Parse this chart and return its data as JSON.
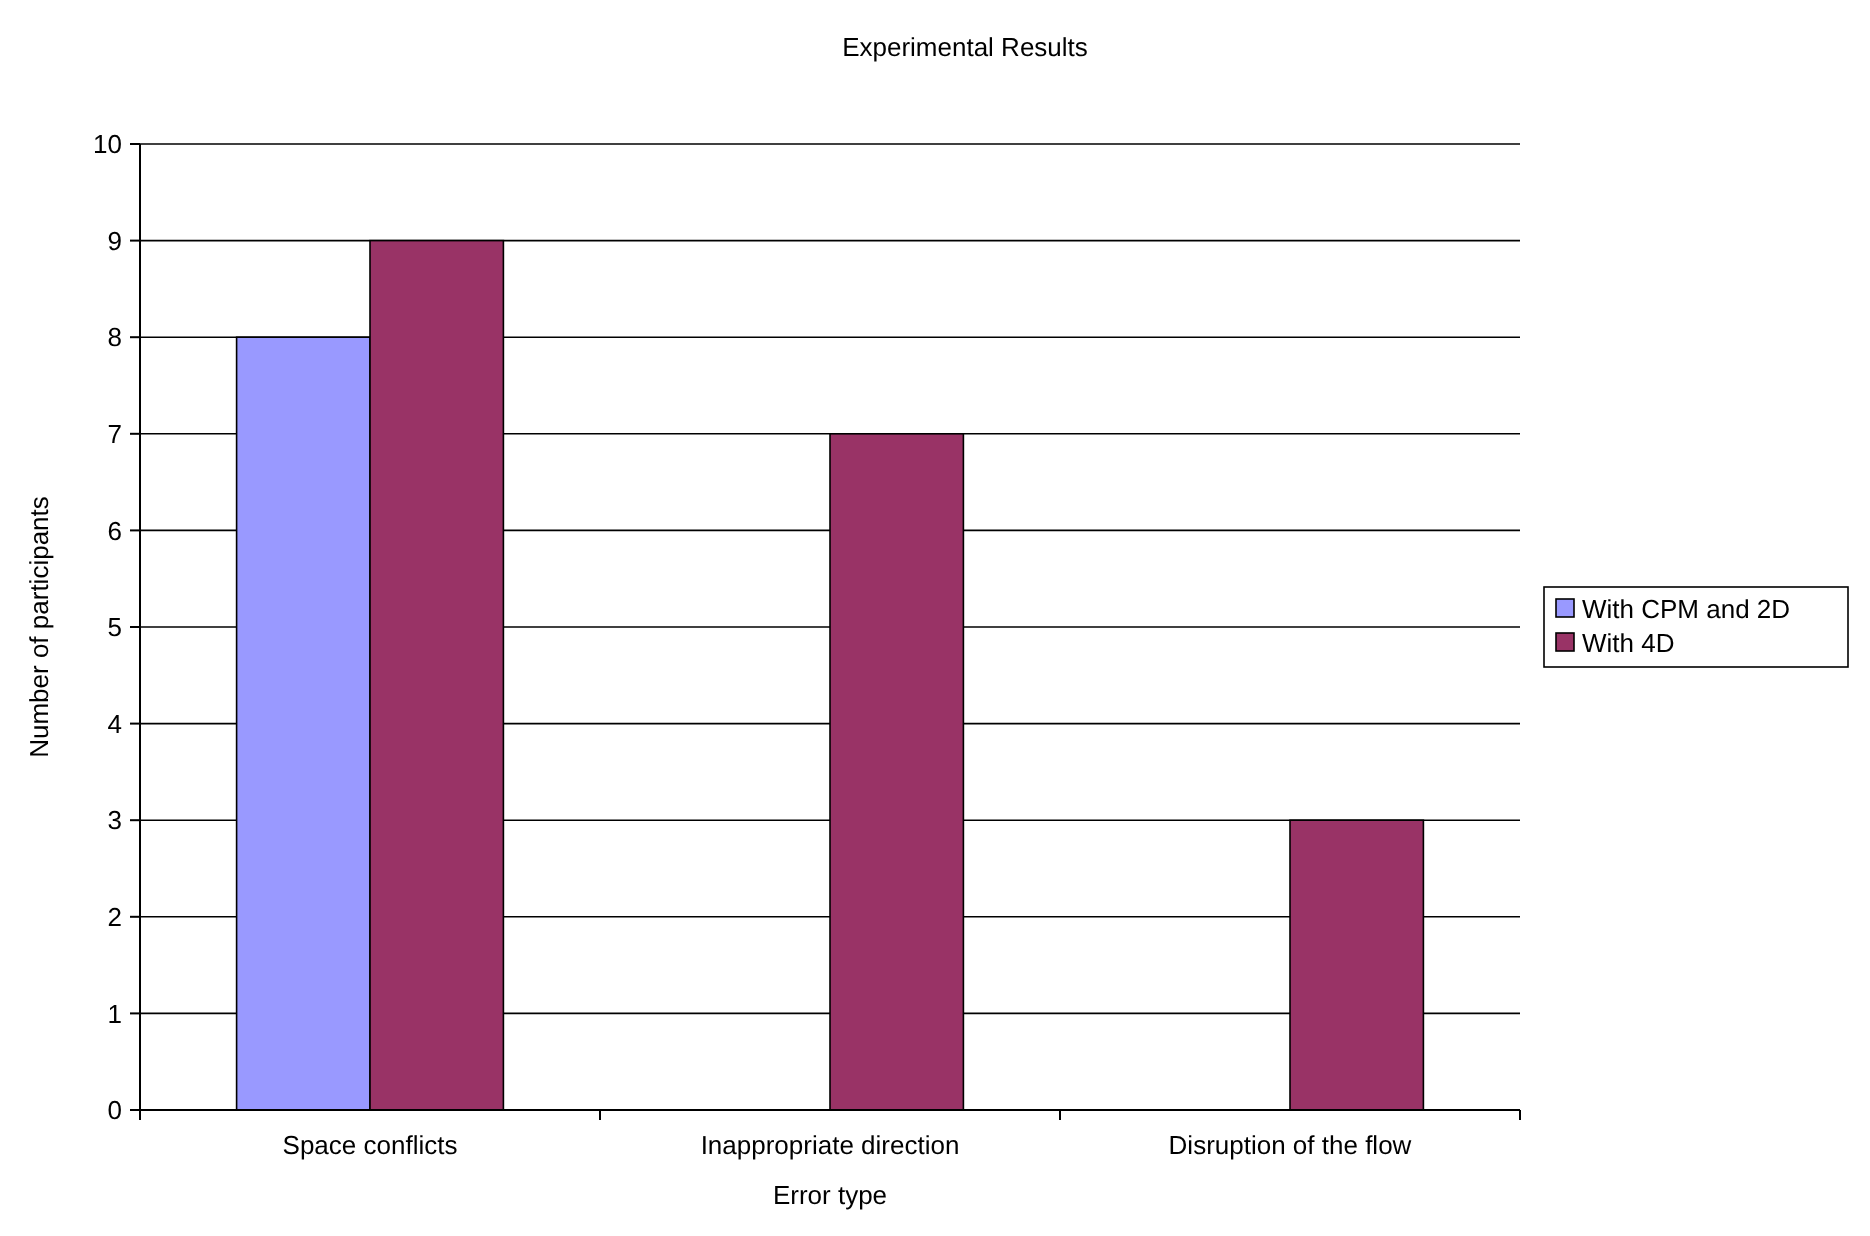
{
  "chart_data": {
    "type": "bar",
    "title": "Experimental Results",
    "xlabel": "Error type",
    "ylabel": "Number of participants",
    "categories": [
      "Space conflicts",
      "Inappropriate direction",
      "Disruption of the flow"
    ],
    "series": [
      {
        "name": "With CPM and 2D",
        "color": "#9999ff",
        "values": [
          8,
          0,
          0
        ]
      },
      {
        "name": "With 4D",
        "color": "#993366",
        "values": [
          9,
          7,
          3
        ]
      }
    ],
    "ylim": [
      0,
      10
    ],
    "yticks": [
      0,
      1,
      2,
      3,
      4,
      5,
      6,
      7,
      8,
      9,
      10
    ],
    "grid": "y",
    "legend": "right"
  }
}
